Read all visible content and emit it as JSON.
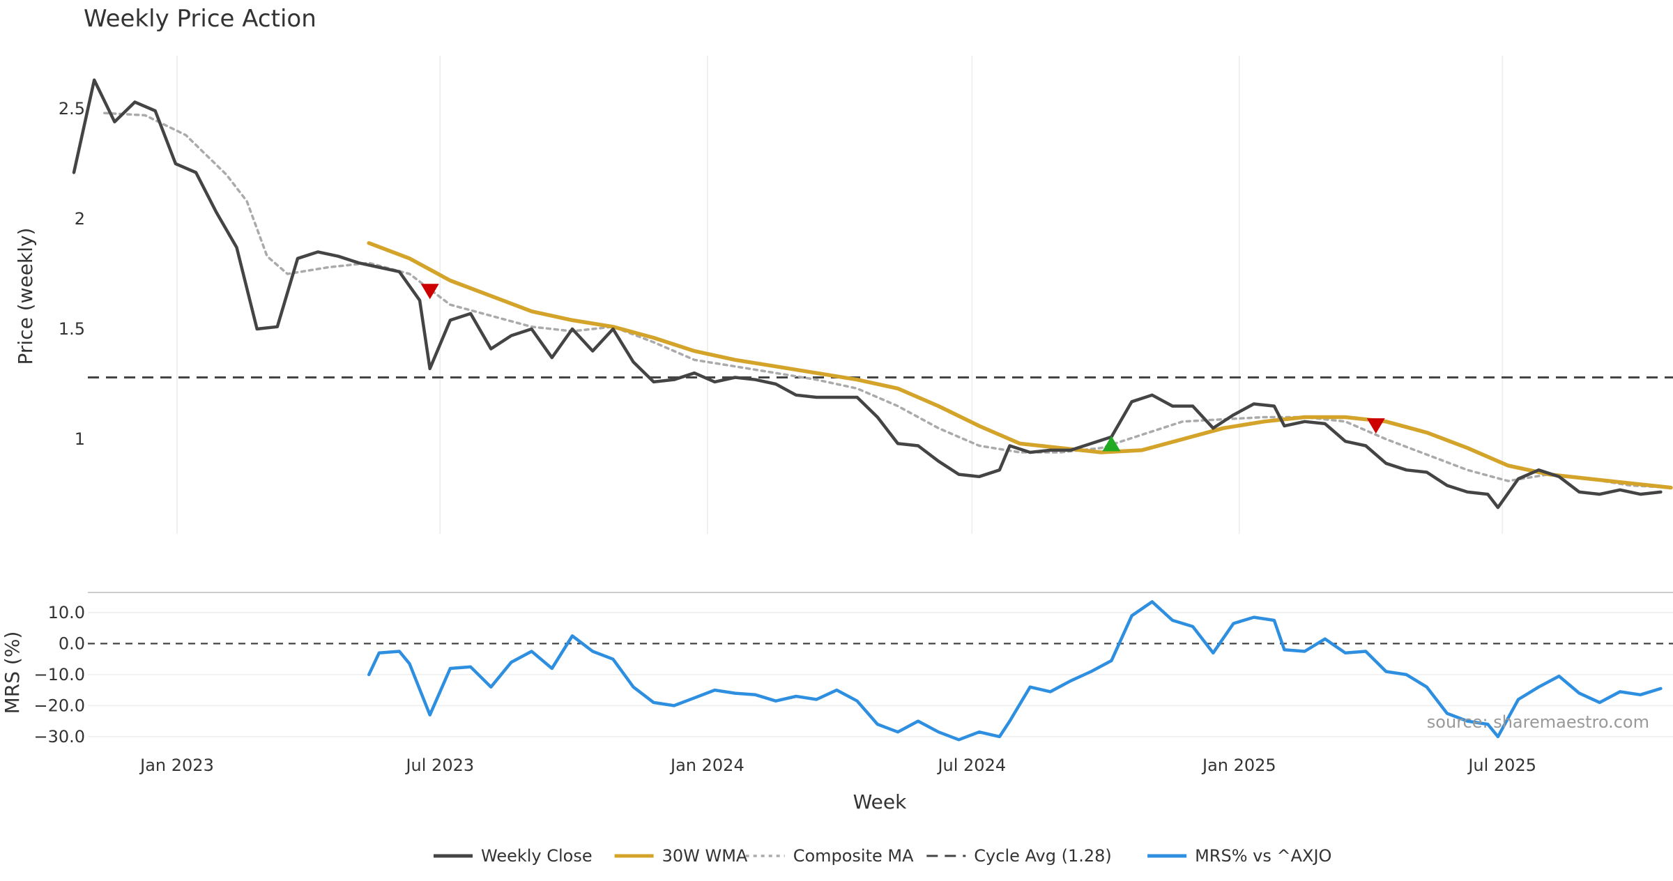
{
  "chart_data": {
    "type": "line",
    "title": "Weekly Price Action",
    "x_axis": {
      "label": "Week",
      "ticks": [
        "Jan 2023",
        "Jul 2023",
        "Jan 2024",
        "Jul 2024",
        "Jan 2025",
        "Jul 2025"
      ],
      "tick_dates": [
        "2023-01-01",
        "2023-07-01",
        "2024-01-01",
        "2024-07-01",
        "2025-01-01",
        "2025-07-01"
      ]
    },
    "price_panel": {
      "ylabel": "Price (weekly)",
      "yticks": [
        "1",
        "1.5",
        "2",
        "2.5"
      ],
      "ytick_values": [
        1,
        1.5,
        2,
        2.5
      ],
      "ylim": [
        0.57,
        2.74
      ],
      "grid": "vertical"
    },
    "mrs_panel": {
      "ylabel": "MRS (%)",
      "yticks": [
        "10.0",
        "0.0",
        "−10.0",
        "−20.0",
        "−30.0"
      ],
      "ytick_values": [
        10,
        0,
        -10,
        -20,
        -30
      ],
      "ylim": [
        -31.6,
        16.5
      ],
      "grid": "horizontal",
      "zero_line": 0
    },
    "series": [
      {
        "name": "Weekly Close",
        "panel": "price",
        "color": "#444444",
        "style": "solid",
        "points": [
          [
            "2022-10-22",
            2.21
          ],
          [
            "2022-11-05",
            2.63
          ],
          [
            "2022-11-19",
            2.44
          ],
          [
            "2022-12-03",
            2.53
          ],
          [
            "2022-12-17",
            2.49
          ],
          [
            "2022-12-31",
            2.25
          ],
          [
            "2023-01-14",
            2.21
          ],
          [
            "2023-01-28",
            2.03
          ],
          [
            "2023-02-11",
            1.87
          ],
          [
            "2023-02-25",
            1.5
          ],
          [
            "2023-03-11",
            1.51
          ],
          [
            "2023-03-25",
            1.82
          ],
          [
            "2023-04-08",
            1.85
          ],
          [
            "2023-04-22",
            1.83
          ],
          [
            "2023-05-06",
            1.8
          ],
          [
            "2023-05-20",
            1.78
          ],
          [
            "2023-06-03",
            1.76
          ],
          [
            "2023-06-17",
            1.63
          ],
          [
            "2023-06-24",
            1.32
          ],
          [
            "2023-07-08",
            1.54
          ],
          [
            "2023-07-22",
            1.57
          ],
          [
            "2023-08-05",
            1.41
          ],
          [
            "2023-08-19",
            1.47
          ],
          [
            "2023-09-02",
            1.5
          ],
          [
            "2023-09-16",
            1.37
          ],
          [
            "2023-09-30",
            1.5
          ],
          [
            "2023-10-14",
            1.4
          ],
          [
            "2023-10-28",
            1.5
          ],
          [
            "2023-11-11",
            1.35
          ],
          [
            "2023-11-25",
            1.26
          ],
          [
            "2023-12-09",
            1.27
          ],
          [
            "2023-12-23",
            1.3
          ],
          [
            "2024-01-06",
            1.26
          ],
          [
            "2024-01-20",
            1.28
          ],
          [
            "2024-02-03",
            1.27
          ],
          [
            "2024-02-17",
            1.25
          ],
          [
            "2024-03-02",
            1.2
          ],
          [
            "2024-03-16",
            1.19
          ],
          [
            "2024-03-30",
            1.19
          ],
          [
            "2024-04-13",
            1.19
          ],
          [
            "2024-04-27",
            1.1
          ],
          [
            "2024-05-11",
            0.98
          ],
          [
            "2024-05-25",
            0.97
          ],
          [
            "2024-06-08",
            0.9
          ],
          [
            "2024-06-22",
            0.84
          ],
          [
            "2024-07-06",
            0.83
          ],
          [
            "2024-07-20",
            0.86
          ],
          [
            "2024-07-27",
            0.97
          ],
          [
            "2024-08-10",
            0.94
          ],
          [
            "2024-08-24",
            0.95
          ],
          [
            "2024-09-07",
            0.95
          ],
          [
            "2024-09-21",
            0.98
          ],
          [
            "2024-10-05",
            1.01
          ],
          [
            "2024-10-19",
            1.17
          ],
          [
            "2024-11-02",
            1.2
          ],
          [
            "2024-11-16",
            1.15
          ],
          [
            "2024-11-30",
            1.15
          ],
          [
            "2024-12-14",
            1.05
          ],
          [
            "2024-12-28",
            1.11
          ],
          [
            "2025-01-11",
            1.16
          ],
          [
            "2025-01-25",
            1.15
          ],
          [
            "2025-02-01",
            1.06
          ],
          [
            "2025-02-15",
            1.08
          ],
          [
            "2025-03-01",
            1.07
          ],
          [
            "2025-03-15",
            0.99
          ],
          [
            "2025-03-29",
            0.97
          ],
          [
            "2025-04-12",
            0.89
          ],
          [
            "2025-04-26",
            0.86
          ],
          [
            "2025-05-10",
            0.85
          ],
          [
            "2025-05-24",
            0.79
          ],
          [
            "2025-06-07",
            0.76
          ],
          [
            "2025-06-21",
            0.75
          ],
          [
            "2025-06-28",
            0.69
          ],
          [
            "2025-07-12",
            0.82
          ],
          [
            "2025-07-26",
            0.86
          ],
          [
            "2025-08-09",
            0.83
          ],
          [
            "2025-08-23",
            0.76
          ],
          [
            "2025-09-06",
            0.75
          ],
          [
            "2025-09-20",
            0.77
          ],
          [
            "2025-10-04",
            0.75
          ],
          [
            "2025-10-18",
            0.76
          ]
        ]
      },
      {
        "name": "30W WMA",
        "panel": "price",
        "color": "#D4A32A",
        "style": "solid",
        "points": [
          [
            "2023-05-13",
            1.89
          ],
          [
            "2023-06-10",
            1.82
          ],
          [
            "2023-07-08",
            1.72
          ],
          [
            "2023-08-05",
            1.65
          ],
          [
            "2023-09-02",
            1.58
          ],
          [
            "2023-09-30",
            1.54
          ],
          [
            "2023-10-28",
            1.51
          ],
          [
            "2023-11-25",
            1.46
          ],
          [
            "2023-12-23",
            1.4
          ],
          [
            "2024-01-20",
            1.36
          ],
          [
            "2024-02-17",
            1.33
          ],
          [
            "2024-03-16",
            1.3
          ],
          [
            "2024-04-13",
            1.27
          ],
          [
            "2024-05-11",
            1.23
          ],
          [
            "2024-06-08",
            1.15
          ],
          [
            "2024-07-06",
            1.06
          ],
          [
            "2024-08-03",
            0.98
          ],
          [
            "2024-08-31",
            0.96
          ],
          [
            "2024-09-28",
            0.94
          ],
          [
            "2024-10-26",
            0.95
          ],
          [
            "2024-11-23",
            1.0
          ],
          [
            "2024-12-21",
            1.05
          ],
          [
            "2025-01-18",
            1.08
          ],
          [
            "2025-02-15",
            1.1
          ],
          [
            "2025-03-15",
            1.1
          ],
          [
            "2025-04-12",
            1.08
          ],
          [
            "2025-05-10",
            1.03
          ],
          [
            "2025-06-07",
            0.96
          ],
          [
            "2025-07-05",
            0.88
          ],
          [
            "2025-08-02",
            0.84
          ],
          [
            "2025-08-30",
            0.82
          ],
          [
            "2025-09-27",
            0.8
          ],
          [
            "2025-10-25",
            0.78
          ]
        ]
      },
      {
        "name": "Composite MA",
        "panel": "price",
        "color": "#AAAAAA",
        "style": "dotted",
        "points": [
          [
            "2022-11-12",
            2.48
          ],
          [
            "2022-12-10",
            2.47
          ],
          [
            "2023-01-07",
            2.38
          ],
          [
            "2023-02-04",
            2.2
          ],
          [
            "2023-02-18",
            2.08
          ],
          [
            "2023-03-04",
            1.83
          ],
          [
            "2023-03-18",
            1.75
          ],
          [
            "2023-04-15",
            1.78
          ],
          [
            "2023-05-13",
            1.8
          ],
          [
            "2023-06-10",
            1.75
          ],
          [
            "2023-07-08",
            1.61
          ],
          [
            "2023-08-05",
            1.56
          ],
          [
            "2023-09-02",
            1.51
          ],
          [
            "2023-09-30",
            1.49
          ],
          [
            "2023-10-28",
            1.51
          ],
          [
            "2023-11-25",
            1.44
          ],
          [
            "2023-12-23",
            1.36
          ],
          [
            "2024-01-20",
            1.33
          ],
          [
            "2024-02-17",
            1.3
          ],
          [
            "2024-03-16",
            1.27
          ],
          [
            "2024-04-13",
            1.23
          ],
          [
            "2024-05-11",
            1.15
          ],
          [
            "2024-06-08",
            1.05
          ],
          [
            "2024-07-06",
            0.97
          ],
          [
            "2024-08-03",
            0.94
          ],
          [
            "2024-08-31",
            0.94
          ],
          [
            "2024-09-28",
            0.96
          ],
          [
            "2024-10-26",
            1.02
          ],
          [
            "2024-11-23",
            1.08
          ],
          [
            "2024-12-21",
            1.09
          ],
          [
            "2025-01-18",
            1.1
          ],
          [
            "2025-02-15",
            1.1
          ],
          [
            "2025-03-15",
            1.08
          ],
          [
            "2025-04-12",
            1.0
          ],
          [
            "2025-05-10",
            0.93
          ],
          [
            "2025-06-07",
            0.86
          ],
          [
            "2025-07-05",
            0.81
          ],
          [
            "2025-08-02",
            0.84
          ],
          [
            "2025-08-30",
            0.82
          ],
          [
            "2025-09-27",
            0.79
          ],
          [
            "2025-10-25",
            0.78
          ]
        ]
      },
      {
        "name": "Cycle Avg (1.28)",
        "panel": "price",
        "color": "#444444",
        "style": "dashed",
        "value": 1.28
      },
      {
        "name": "MRS% vs ^AXJO",
        "panel": "mrs",
        "color": "#2E8FE0",
        "style": "solid",
        "points": [
          [
            "2023-05-13",
            -10.0
          ],
          [
            "2023-05-20",
            -3.0
          ],
          [
            "2023-06-03",
            -2.5
          ],
          [
            "2023-06-10",
            -6.5
          ],
          [
            "2023-06-24",
            -23.0
          ],
          [
            "2023-07-08",
            -8.0
          ],
          [
            "2023-07-22",
            -7.5
          ],
          [
            "2023-08-05",
            -14.0
          ],
          [
            "2023-08-19",
            -6.0
          ],
          [
            "2023-09-02",
            -2.5
          ],
          [
            "2023-09-16",
            -8.0
          ],
          [
            "2023-09-30",
            2.5
          ],
          [
            "2023-10-14",
            -2.5
          ],
          [
            "2023-10-28",
            -5.0
          ],
          [
            "2023-11-11",
            -14.0
          ],
          [
            "2023-11-25",
            -19.0
          ],
          [
            "2023-12-09",
            -20.0
          ],
          [
            "2023-12-23",
            -17.5
          ],
          [
            "2024-01-06",
            -15.0
          ],
          [
            "2024-01-20",
            -16.0
          ],
          [
            "2024-02-03",
            -16.5
          ],
          [
            "2024-02-17",
            -18.5
          ],
          [
            "2024-03-02",
            -17.0
          ],
          [
            "2024-03-16",
            -18.0
          ],
          [
            "2024-03-30",
            -15.0
          ],
          [
            "2024-04-13",
            -18.5
          ],
          [
            "2024-04-27",
            -26.0
          ],
          [
            "2024-05-11",
            -28.5
          ],
          [
            "2024-05-25",
            -25.0
          ],
          [
            "2024-06-08",
            -28.5
          ],
          [
            "2024-06-22",
            -31.0
          ],
          [
            "2024-07-06",
            -28.5
          ],
          [
            "2024-07-20",
            -30.0
          ],
          [
            "2024-07-27",
            -25.0
          ],
          [
            "2024-08-10",
            -14.0
          ],
          [
            "2024-08-24",
            -15.5
          ],
          [
            "2024-09-07",
            -12.0
          ],
          [
            "2024-09-21",
            -9.0
          ],
          [
            "2024-10-05",
            -5.5
          ],
          [
            "2024-10-19",
            9.0
          ],
          [
            "2024-11-02",
            13.5
          ],
          [
            "2024-11-16",
            7.5
          ],
          [
            "2024-11-30",
            5.5
          ],
          [
            "2024-12-14",
            -3.0
          ],
          [
            "2024-12-28",
            6.5
          ],
          [
            "2025-01-11",
            8.5
          ],
          [
            "2025-01-25",
            7.5
          ],
          [
            "2025-02-01",
            -2.0
          ],
          [
            "2025-02-15",
            -2.5
          ],
          [
            "2025-03-01",
            1.5
          ],
          [
            "2025-03-15",
            -3.0
          ],
          [
            "2025-03-29",
            -2.5
          ],
          [
            "2025-04-12",
            -9.0
          ],
          [
            "2025-04-26",
            -10.0
          ],
          [
            "2025-05-10",
            -14.0
          ],
          [
            "2025-05-24",
            -22.5
          ],
          [
            "2025-06-07",
            -25.0
          ],
          [
            "2025-06-21",
            -26.0
          ],
          [
            "2025-06-28",
            -30.0
          ],
          [
            "2025-07-12",
            -18.0
          ],
          [
            "2025-07-26",
            -14.0
          ],
          [
            "2025-08-09",
            -10.5
          ],
          [
            "2025-08-23",
            -16.0
          ],
          [
            "2025-09-06",
            -19.0
          ],
          [
            "2025-09-20",
            -15.5
          ],
          [
            "2025-10-04",
            -16.5
          ],
          [
            "2025-10-18",
            -14.5
          ]
        ]
      }
    ],
    "markers": [
      {
        "type": "sell",
        "shape": "triangle-down",
        "color": "#CC0000",
        "date": "2023-06-24",
        "value": 1.67
      },
      {
        "type": "buy",
        "shape": "triangle-up",
        "color": "#22AA22",
        "date": "2024-10-05",
        "value": 0.98
      },
      {
        "type": "sell",
        "shape": "triangle-down",
        "color": "#CC0000",
        "date": "2025-04-05",
        "value": 1.06
      }
    ],
    "legend": {
      "placement": "bottom-center",
      "entries": [
        "Weekly Close",
        "30W WMA",
        "Composite MA",
        "Cycle Avg (1.28)",
        "MRS% vs ^AXJO"
      ]
    },
    "annotation": "source: sharemaestro.com"
  }
}
